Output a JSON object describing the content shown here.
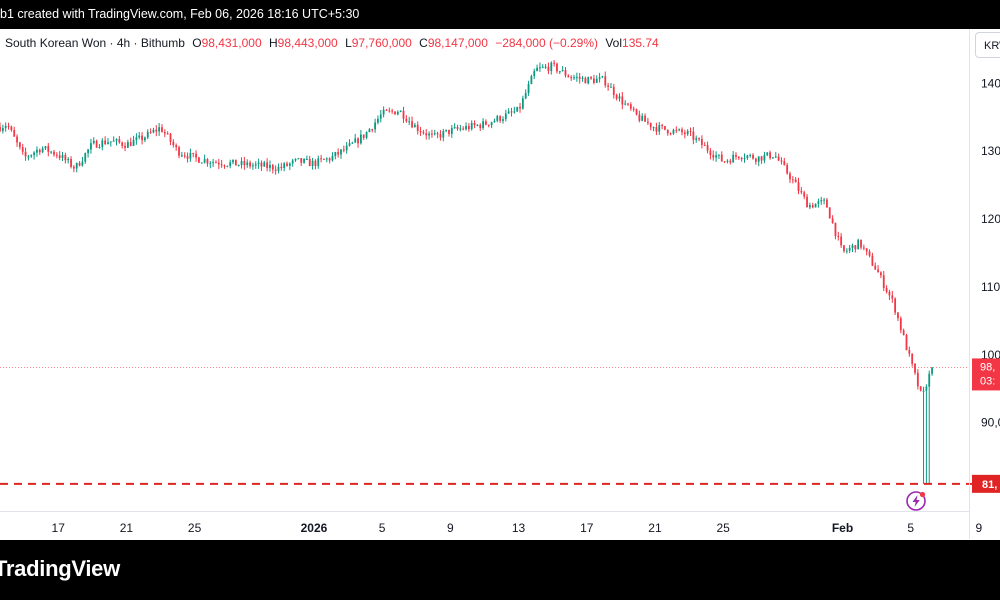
{
  "header": {
    "text": "b1 created with TradingView.com, Feb 06, 2026 18:16 UTC+5:30"
  },
  "legend": {
    "symbol": "South Korean Won · 4h · Bithumb",
    "open_label": "O",
    "open": "98,431,000",
    "high_label": "H",
    "high": "98,443,000",
    "low_label": "L",
    "low": "97,760,000",
    "close_label": "C",
    "close": "98,147,000",
    "change": "−284,000 (−0.29%)",
    "vol_label": "Vol",
    "vol": "135.74"
  },
  "currency_button": "KRW",
  "price_badge": {
    "line1": "98,",
    "line2": "03:"
  },
  "support_badge": "81,",
  "footer": {
    "brand": "TradingView"
  },
  "chart_data": {
    "type": "candlestick",
    "title": "",
    "xlabel": "",
    "ylabel": "",
    "y_tick_labels": [
      "140",
      "130",
      "120",
      "110",
      "100",
      "90,0"
    ],
    "y_ticks": [
      140000000,
      130000000,
      120000000,
      110000000,
      100000000,
      90000000
    ],
    "ylim": [
      77000000,
      148000000
    ],
    "x_tick_labels": [
      "17",
      "21",
      "25",
      "2026",
      "5",
      "9",
      "13",
      "17",
      "21",
      "25",
      "Feb",
      "5",
      "9"
    ],
    "x_tick_dates": [
      "2025-12-17",
      "2025-12-21",
      "2025-12-25",
      "2026-01-01",
      "2026-01-05",
      "2026-01-09",
      "2026-01-13",
      "2026-01-17",
      "2026-01-21",
      "2026-01-25",
      "2026-02-01",
      "2026-02-05",
      "2026-02-09"
    ],
    "x_start": "2025-12-13",
    "interval": "4h",
    "current_price": 98147000,
    "support_level": 81000000,
    "colors": {
      "up": "#089981",
      "down": "#f23645",
      "support": "#e02424",
      "current": "#f23645"
    },
    "close_path": [
      [
        "2025-12-13",
        133000000
      ],
      [
        "2025-12-14",
        134000000
      ],
      [
        "2025-12-15",
        129000000
      ],
      [
        "2025-12-16",
        130500000
      ],
      [
        "2025-12-17",
        129500000
      ],
      [
        "2025-12-18",
        127500000
      ],
      [
        "2025-12-19",
        131000000
      ],
      [
        "2025-12-20",
        131500000
      ],
      [
        "2025-12-21",
        131000000
      ],
      [
        "2025-12-22",
        132000000
      ],
      [
        "2025-12-23",
        133500000
      ],
      [
        "2025-12-24",
        130000000
      ],
      [
        "2025-12-25",
        129000000
      ],
      [
        "2025-12-26",
        128500000
      ],
      [
        "2025-12-27",
        128200000
      ],
      [
        "2025-12-28",
        128000000
      ],
      [
        "2025-12-29",
        127800000
      ],
      [
        "2025-12-30",
        127500000
      ],
      [
        "2025-12-31",
        128500000
      ],
      [
        "2026-01-01",
        128200000
      ],
      [
        "2026-01-02",
        129000000
      ],
      [
        "2026-01-03",
        130500000
      ],
      [
        "2026-01-04",
        132500000
      ],
      [
        "2026-01-05",
        135500000
      ],
      [
        "2026-01-06",
        136000000
      ],
      [
        "2026-01-07",
        133500000
      ],
      [
        "2026-01-08",
        132000000
      ],
      [
        "2026-01-09",
        133000000
      ],
      [
        "2026-01-10",
        133500000
      ],
      [
        "2026-01-11",
        134000000
      ],
      [
        "2026-01-12",
        135000000
      ],
      [
        "2026-01-13",
        136000000
      ],
      [
        "2026-01-14",
        142000000
      ],
      [
        "2026-01-15",
        142500000
      ],
      [
        "2026-01-16",
        141000000
      ],
      [
        "2026-01-17",
        140500000
      ],
      [
        "2026-01-18",
        140500000
      ],
      [
        "2026-01-19",
        137500000
      ],
      [
        "2026-01-20",
        135000000
      ],
      [
        "2026-01-21",
        133500000
      ],
      [
        "2026-01-22",
        133000000
      ],
      [
        "2026-01-23",
        132500000
      ],
      [
        "2026-01-24",
        130500000
      ],
      [
        "2026-01-25",
        128500000
      ],
      [
        "2026-01-26",
        129500000
      ],
      [
        "2026-01-27",
        129000000
      ],
      [
        "2026-01-28",
        129500000
      ],
      [
        "2026-01-29",
        126000000
      ],
      [
        "2026-01-30",
        122000000
      ],
      [
        "2026-01-31",
        122500000
      ],
      [
        "2026-02-01",
        115000000
      ],
      [
        "2026-02-02",
        116500000
      ],
      [
        "2026-02-03",
        112500000
      ],
      [
        "2026-02-04",
        107500000
      ],
      [
        "2026-02-05",
        99000000
      ],
      [
        "2026-02-05T16:00",
        93500000
      ],
      [
        "2026-02-06",
        96500000
      ],
      [
        "2026-02-06T08:00",
        98147000
      ]
    ]
  }
}
